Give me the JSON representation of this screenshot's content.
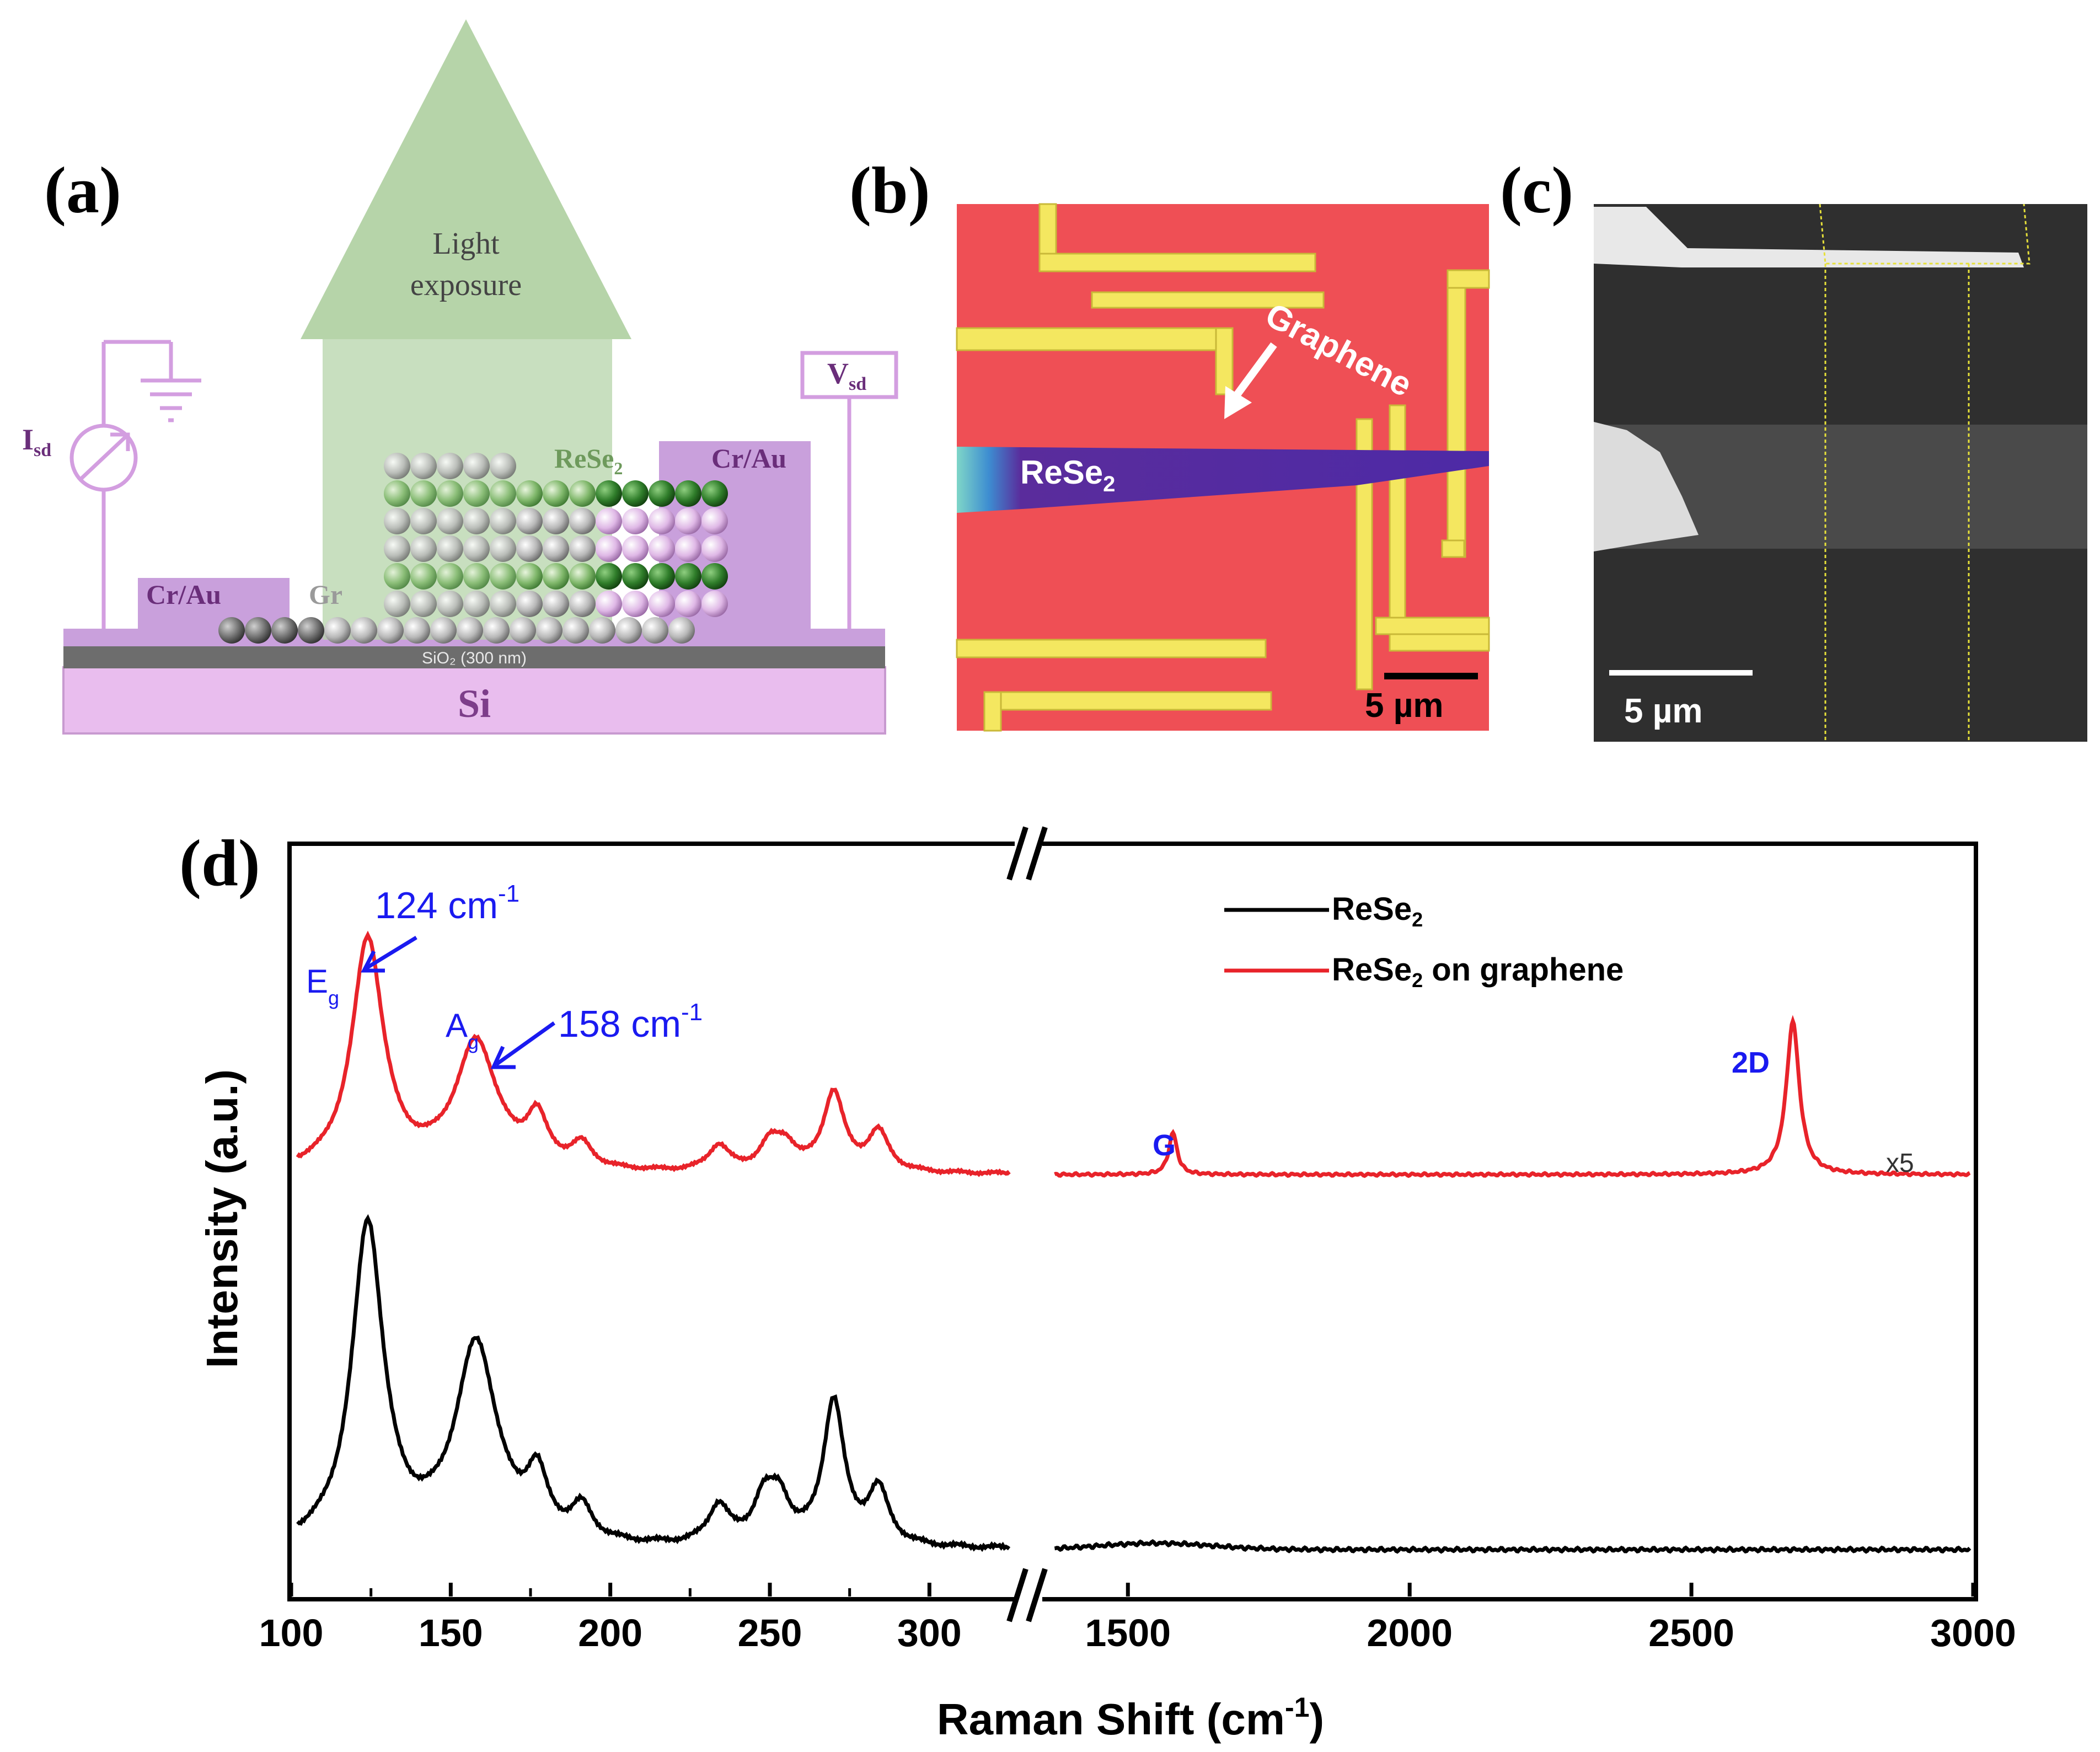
{
  "panel_labels": {
    "a": "(a)",
    "b": "(b)",
    "c": "(c)",
    "d": "(d)"
  },
  "panel_a": {
    "light_line1": "Light",
    "light_line2": "exposure",
    "isd_main": "I",
    "isd_sub": "sd",
    "vsd_main": "V",
    "vsd_sub": "sd",
    "crau_left": "Cr/Au",
    "crau_right": "Cr/Au",
    "gr_label": "Gr",
    "rese2_main": "ReSe",
    "rese2_sub": "2",
    "sio2_text": "SiO₂ (300 nm)",
    "si_label": "Si",
    "colors": {
      "substrate": "#e9bdee",
      "oxide": "#6d6d6d",
      "contact": "#c9a0dc",
      "light": "#b6d4a9",
      "circuit": "#d39ee0"
    }
  },
  "panel_b": {
    "graphene_label": "Graphene",
    "rese2_main": "ReSe",
    "rese2_sub": "2",
    "scale_label": "5 µm",
    "colors": {
      "background": "#ef4f55",
      "electrode": "#f4e760",
      "flake": "#5a2c9c"
    }
  },
  "panel_c": {
    "scale_label": "5 µm",
    "colors": {
      "background": "#2f2f2f",
      "band": "#4a4a4a",
      "guide": "#e6e03a"
    }
  },
  "chart_data": {
    "type": "line",
    "broken_axis": true,
    "x_segments": [
      [
        100,
        325
      ],
      [
        1350,
        3000
      ]
    ],
    "xlabel": "Raman Shift (cm⁻¹)",
    "xlabel_main": "Raman Shift (cm",
    "xlabel_sup": "-1",
    "xlabel_close": ")",
    "ylabel": "Intensity (a.u.)",
    "xticks_left": [
      "100",
      "150",
      "200",
      "250",
      "300"
    ],
    "xticks_right": [
      "1500",
      "2000",
      "2500",
      "3000"
    ],
    "series": [
      {
        "name": "ReSe₂",
        "color": "#000000",
        "peaks_cm": [
          124,
          158,
          177,
          191,
          234,
          248,
          253,
          270,
          284
        ],
        "relative_intensity": [
          1.0,
          0.62,
          0.18,
          0.1,
          0.12,
          0.13,
          0.13,
          0.45,
          0.17
        ]
      },
      {
        "name": "ReSe₂ on graphene",
        "color": "#e8232a",
        "peaks_cm": [
          124,
          158,
          177,
          191,
          234,
          250,
          255,
          270,
          284,
          1580,
          2680
        ],
        "relative_intensity": [
          1.0,
          0.55,
          0.2,
          0.1,
          0.11,
          0.11,
          0.1,
          0.34,
          0.17,
          0.18,
          0.66
        ]
      }
    ],
    "legend": {
      "line1_main": "ReSe",
      "line1_sub": "2",
      "line2_main": "ReSe",
      "line2_sub": "2",
      "line2_rest": " on graphene",
      "position": "top-right"
    },
    "annotations": {
      "eg_main": "E",
      "eg_sub": "g",
      "eg_value": "124 cm",
      "eg_sup": "-1",
      "ag_main": "A",
      "ag_sub": "g",
      "ag_value": "158 cm",
      "ag_sup": "-1",
      "g_peak": "G",
      "d2_peak": "2D",
      "scale_note": "x5"
    }
  }
}
